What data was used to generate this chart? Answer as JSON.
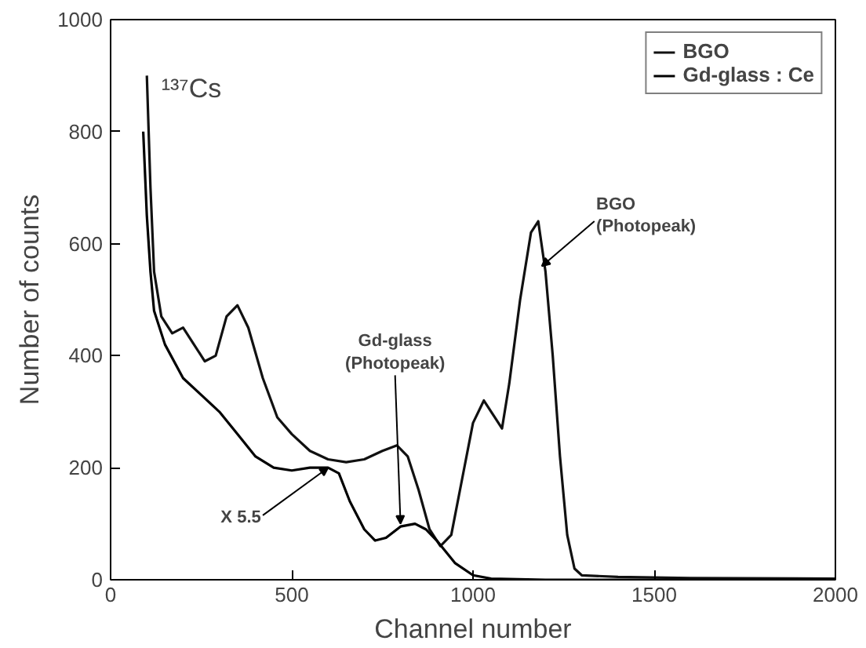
{
  "chart_data": {
    "type": "line",
    "xlabel": "Channel number",
    "ylabel": "Number of counts",
    "xlim": [
      0,
      2000
    ],
    "xticks": [
      0,
      500,
      1000,
      1500,
      2000
    ],
    "ylim": [
      0,
      1000
    ],
    "yticks": [
      0,
      200,
      400,
      600,
      800,
      1000
    ],
    "grid": false,
    "legend": "top right",
    "line_style": "solid",
    "marker": "none",
    "annotations": [
      "¹³⁷Cs",
      {
        "text": "Gd-glass\n(Photopeak)",
        "x": 800,
        "y": 100
      },
      {
        "text": "BGO\n(Photopeak)",
        "x": 1190,
        "y": 560
      },
      {
        "text": "X 5.5",
        "x": 600,
        "y": 200
      }
    ],
    "series": [
      {
        "name": "BGO",
        "color": "#111111",
        "x": [
          100,
          110,
          120,
          140,
          170,
          200,
          230,
          260,
          290,
          320,
          350,
          380,
          420,
          460,
          500,
          550,
          600,
          650,
          700,
          750,
          790,
          820,
          850,
          880,
          910,
          940,
          970,
          1000,
          1030,
          1060,
          1080,
          1100,
          1130,
          1160,
          1180,
          1200,
          1220,
          1240,
          1260,
          1280,
          1300,
          1400,
          1600,
          2000
        ],
        "values": [
          900,
          700,
          550,
          470,
          440,
          450,
          420,
          390,
          400,
          470,
          490,
          450,
          360,
          290,
          260,
          230,
          215,
          210,
          215,
          230,
          240,
          220,
          160,
          90,
          60,
          80,
          180,
          280,
          320,
          290,
          270,
          350,
          500,
          620,
          640,
          550,
          400,
          220,
          80,
          20,
          8,
          5,
          3,
          2
        ]
      },
      {
        "name": "Gd-glass : Ce",
        "color": "#000000",
        "x": [
          90,
          100,
          110,
          120,
          150,
          200,
          250,
          300,
          350,
          400,
          450,
          500,
          550,
          600,
          630,
          660,
          700,
          730,
          760,
          800,
          840,
          870,
          900,
          950,
          1000,
          1050,
          1200,
          2000
        ],
        "values": [
          800,
          650,
          550,
          480,
          420,
          360,
          330,
          300,
          260,
          220,
          200,
          195,
          200,
          200,
          190,
          140,
          90,
          70,
          75,
          95,
          100,
          90,
          70,
          30,
          8,
          2,
          0,
          0
        ]
      }
    ]
  }
}
